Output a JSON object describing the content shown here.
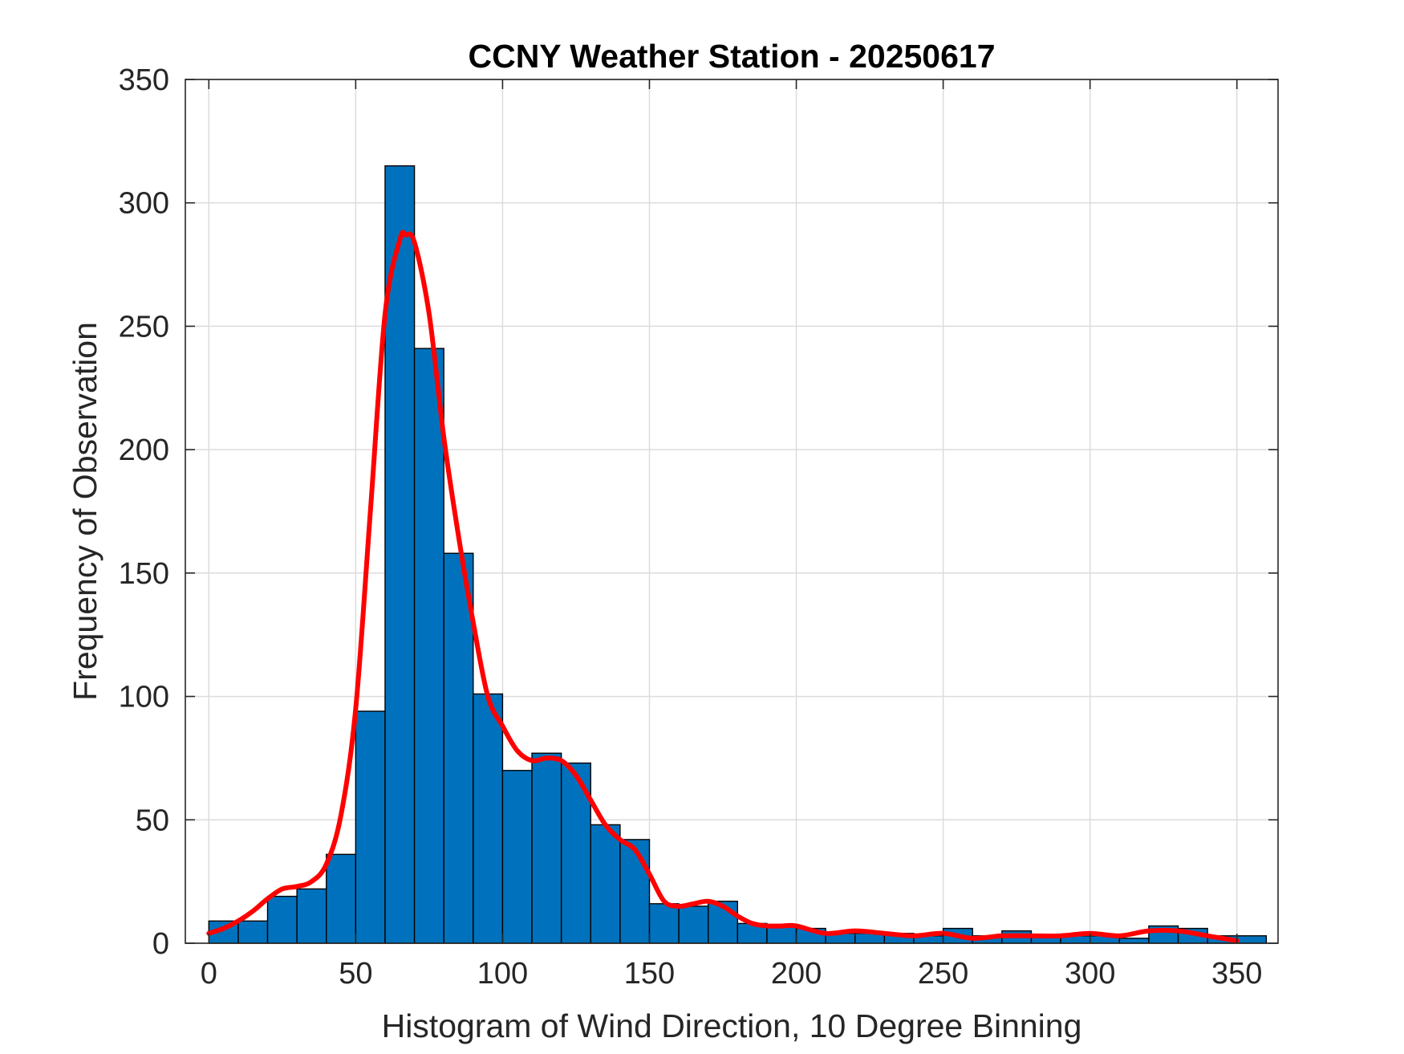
{
  "chart_data": {
    "type": "bar",
    "title": "CCNY Weather Station - 20250617",
    "xlabel": "Histogram of Wind Direction, 10 Degree Binning",
    "ylabel": "Frequency of Observation",
    "xlim": [
      -8,
      364
    ],
    "ylim": [
      0,
      350
    ],
    "xticks": [
      0,
      50,
      100,
      150,
      200,
      250,
      300,
      350
    ],
    "yticks": [
      0,
      50,
      100,
      150,
      200,
      250,
      300,
      350
    ],
    "grid": true,
    "bin_width": 10,
    "bins": {
      "x_start": [
        0,
        10,
        20,
        30,
        40,
        50,
        60,
        70,
        80,
        90,
        100,
        110,
        120,
        130,
        140,
        150,
        160,
        170,
        180,
        190,
        200,
        210,
        220,
        230,
        240,
        250,
        260,
        270,
        280,
        290,
        300,
        310,
        320,
        330,
        340,
        350
      ],
      "values": [
        9,
        9,
        19,
        22,
        36,
        94,
        315,
        241,
        158,
        101,
        70,
        77,
        73,
        48,
        42,
        16,
        15,
        17,
        8,
        7,
        6,
        4,
        4,
        4,
        3,
        6,
        3,
        5,
        3,
        3,
        3,
        2,
        7,
        6,
        3,
        3
      ]
    },
    "series": [
      {
        "type": "line",
        "x": [
          0,
          5,
          10,
          15,
          20,
          25,
          30,
          35,
          40,
          45,
          50,
          55,
          60,
          65,
          67,
          70,
          75,
          80,
          85,
          90,
          95,
          100,
          105,
          110,
          115,
          120,
          125,
          130,
          135,
          140,
          145,
          150,
          155,
          160,
          165,
          170,
          175,
          180,
          185,
          190,
          195,
          200,
          210,
          220,
          230,
          240,
          250,
          260,
          270,
          280,
          290,
          300,
          310,
          320,
          330,
          340,
          350
        ],
        "values": [
          4,
          6,
          9,
          13,
          18,
          22,
          23,
          25,
          32,
          52,
          95,
          175,
          255,
          285,
          287,
          284,
          255,
          205,
          165,
          130,
          100,
          88,
          78,
          74,
          75,
          74,
          68,
          58,
          48,
          42,
          38,
          28,
          17,
          15,
          16,
          17,
          15,
          11,
          8,
          7,
          7,
          7,
          4,
          5,
          4,
          3,
          4,
          2,
          3,
          3,
          3,
          4,
          3,
          5,
          5,
          3,
          1
        ],
        "color": "#ff0000"
      }
    ],
    "bar_color": "#0072bd",
    "bar_edge_color": "#000000"
  }
}
